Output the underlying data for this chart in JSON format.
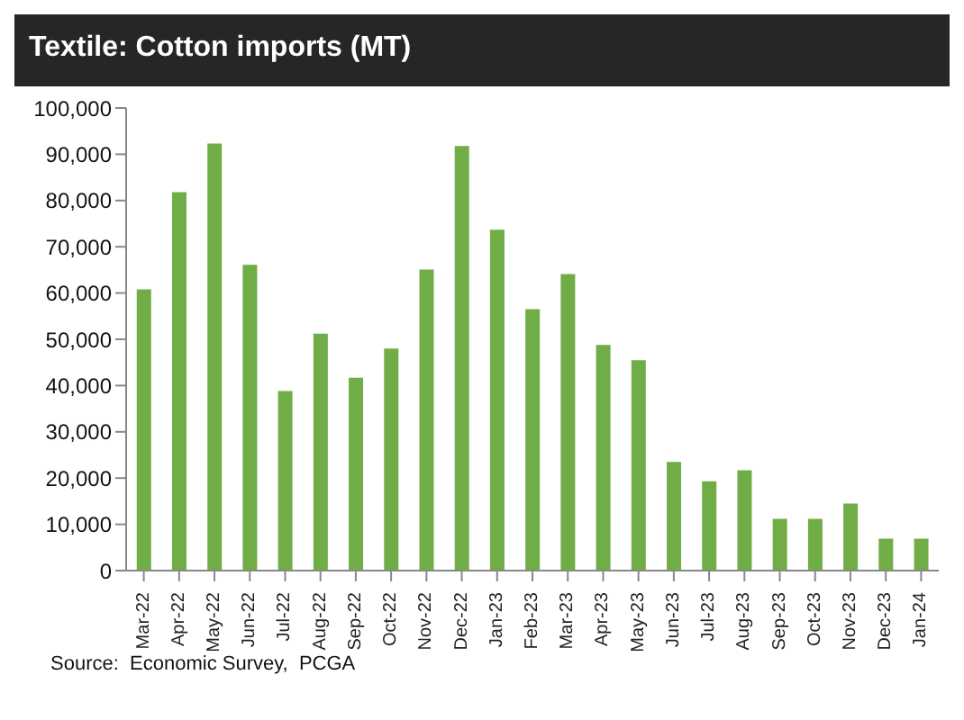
{
  "chart_data": {
    "type": "bar",
    "title": "Textile: Cotton imports (MT)",
    "categories": [
      "Mar-22",
      "Apr-22",
      "May-22",
      "Jun-22",
      "Jul-22",
      "Aug-22",
      "Sep-22",
      "Oct-22",
      "Nov-22",
      "Dec-22",
      "Jan-23",
      "Feb-23",
      "Mar-23",
      "Apr-23",
      "May-23",
      "Jun-23",
      "Jul-23",
      "Aug-23",
      "Sep-23",
      "Oct-23",
      "Nov-23",
      "Dec-23",
      "Jan-24"
    ],
    "values": [
      60800,
      81800,
      92300,
      66100,
      38800,
      51200,
      41700,
      48000,
      65100,
      91800,
      73700,
      56500,
      64100,
      48800,
      45500,
      23500,
      19300,
      21700,
      11200,
      11200,
      14500,
      6900,
      6900
    ],
    "color": "#70ad47",
    "ylim": [
      0,
      100000
    ],
    "yticks": [
      0,
      {
        "value": 10000,
        "label": "10,000"
      },
      {
        "value": 20000,
        "label": "20,000"
      },
      {
        "value": 30000,
        "label": "30,000"
      },
      {
        "value": 40000,
        "label": "40,000"
      },
      {
        "value": 50000,
        "label": "50,000"
      },
      {
        "value": 60000,
        "label": "60,000"
      },
      {
        "value": 70000,
        "label": "70,000"
      },
      {
        "value": 80000,
        "label": "80,000"
      },
      {
        "value": 90000,
        "label": "90,000"
      },
      {
        "value": 100000,
        "label": "100,000"
      }
    ],
    "grid": false,
    "legend": false,
    "annotations": [
      "Source:  Economic Survey,  PCGA"
    ]
  }
}
